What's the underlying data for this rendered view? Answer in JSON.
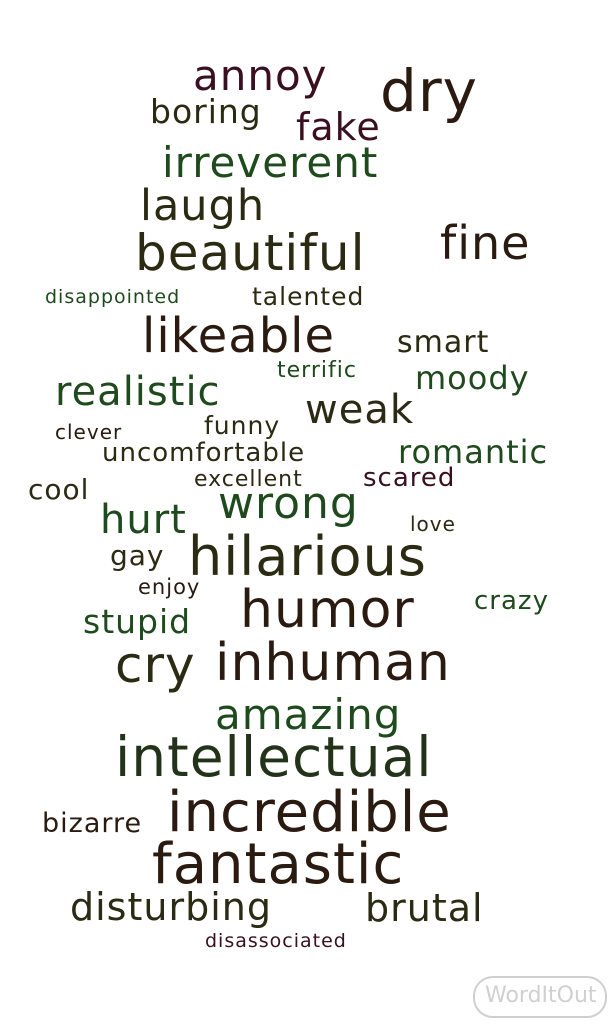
{
  "words": [
    {
      "text": "annoy"
    },
    {
      "text": "dry"
    },
    {
      "text": "boring"
    },
    {
      "text": "fake"
    },
    {
      "text": "irreverent"
    },
    {
      "text": "laugh"
    },
    {
      "text": "beautiful"
    },
    {
      "text": "fine"
    },
    {
      "text": "disappointed"
    },
    {
      "text": "talented"
    },
    {
      "text": "likeable"
    },
    {
      "text": "smart"
    },
    {
      "text": "terrific"
    },
    {
      "text": "moody"
    },
    {
      "text": "realistic"
    },
    {
      "text": "weak"
    },
    {
      "text": "funny"
    },
    {
      "text": "clever"
    },
    {
      "text": "uncomfortable"
    },
    {
      "text": "romantic"
    },
    {
      "text": "excellent"
    },
    {
      "text": "scared"
    },
    {
      "text": "cool"
    },
    {
      "text": "wrong"
    },
    {
      "text": "hurt"
    },
    {
      "text": "love"
    },
    {
      "text": "gay"
    },
    {
      "text": "hilarious"
    },
    {
      "text": "enjoy"
    },
    {
      "text": "humor"
    },
    {
      "text": "crazy"
    },
    {
      "text": "stupid"
    },
    {
      "text": "cry"
    },
    {
      "text": "inhuman"
    },
    {
      "text": "amazing"
    },
    {
      "text": "intellectual"
    },
    {
      "text": "bizarre"
    },
    {
      "text": "incredible"
    },
    {
      "text": "fantastic"
    },
    {
      "text": "disturbing"
    },
    {
      "text": "brutal"
    },
    {
      "text": "disassociated"
    }
  ],
  "logo": {
    "text": "WordItOut"
  }
}
